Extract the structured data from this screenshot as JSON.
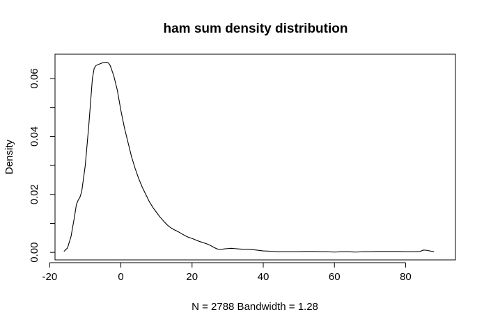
{
  "chart_data": {
    "type": "line",
    "title": "ham sum density distribution",
    "xlabel": "N = 2788   Bandwidth = 1.28",
    "ylabel": "Density",
    "xlim": [
      -18.5,
      94
    ],
    "ylim": [
      -0.0026,
      0.0684
    ],
    "x_ticks": [
      -20,
      0,
      20,
      40,
      60,
      80
    ],
    "x_tick_labels": [
      "-20",
      "0",
      "20",
      "40",
      "60",
      "80"
    ],
    "y_ticks": [
      0.0,
      0.01,
      0.02,
      0.03,
      0.04,
      0.05,
      0.06
    ],
    "y_tick_labels": [
      "0.00",
      "",
      "0.02",
      "",
      "0.04",
      "",
      "0.06"
    ],
    "grid": false,
    "legend": "none",
    "series": [
      {
        "x": [
          -16,
          -15,
          -14,
          -13,
          -12.5,
          -12,
          -11.5,
          -11,
          -10,
          -9,
          -8,
          -7.5,
          -7,
          -6,
          -5,
          -4,
          -3.5,
          -3,
          -2,
          -1,
          0,
          1,
          2,
          3,
          4,
          5,
          6,
          7,
          8,
          9,
          10,
          11,
          12,
          13,
          14,
          15,
          16,
          17,
          18,
          19,
          20,
          21,
          22,
          24,
          25,
          26,
          27,
          28,
          29,
          30,
          31,
          32,
          33,
          34,
          35,
          36,
          38,
          40,
          42,
          44,
          46,
          48,
          50,
          52,
          54,
          56,
          58,
          60,
          62,
          64,
          66,
          68,
          70,
          72,
          74,
          76,
          78,
          80,
          82,
          84,
          85,
          86,
          88
        ],
        "y": [
          0.0003,
          0.0015,
          0.0055,
          0.0125,
          0.0165,
          0.018,
          0.019,
          0.021,
          0.03,
          0.044,
          0.06,
          0.0635,
          0.0645,
          0.065,
          0.0655,
          0.0656,
          0.0654,
          0.0645,
          0.061,
          0.056,
          0.049,
          0.043,
          0.038,
          0.033,
          0.029,
          0.0255,
          0.0225,
          0.02,
          0.0175,
          0.0155,
          0.0138,
          0.0122,
          0.0108,
          0.0095,
          0.0085,
          0.0078,
          0.0072,
          0.0065,
          0.0058,
          0.0052,
          0.0048,
          0.0043,
          0.0038,
          0.003,
          0.0025,
          0.0018,
          0.0012,
          0.001,
          0.0012,
          0.0013,
          0.0014,
          0.0013,
          0.0012,
          0.0011,
          0.0011,
          0.0011,
          0.0008,
          0.0005,
          0.0004,
          0.0002,
          0.0002,
          0.0002,
          0.0002,
          0.0003,
          0.0003,
          0.0002,
          0.0002,
          0.0001,
          0.0002,
          0.0002,
          0.0001,
          0.0002,
          0.0002,
          0.0003,
          0.0003,
          0.0003,
          0.0003,
          0.0002,
          0.0002,
          0.0003,
          0.0008,
          0.0007,
          0.0002
        ]
      }
    ]
  }
}
